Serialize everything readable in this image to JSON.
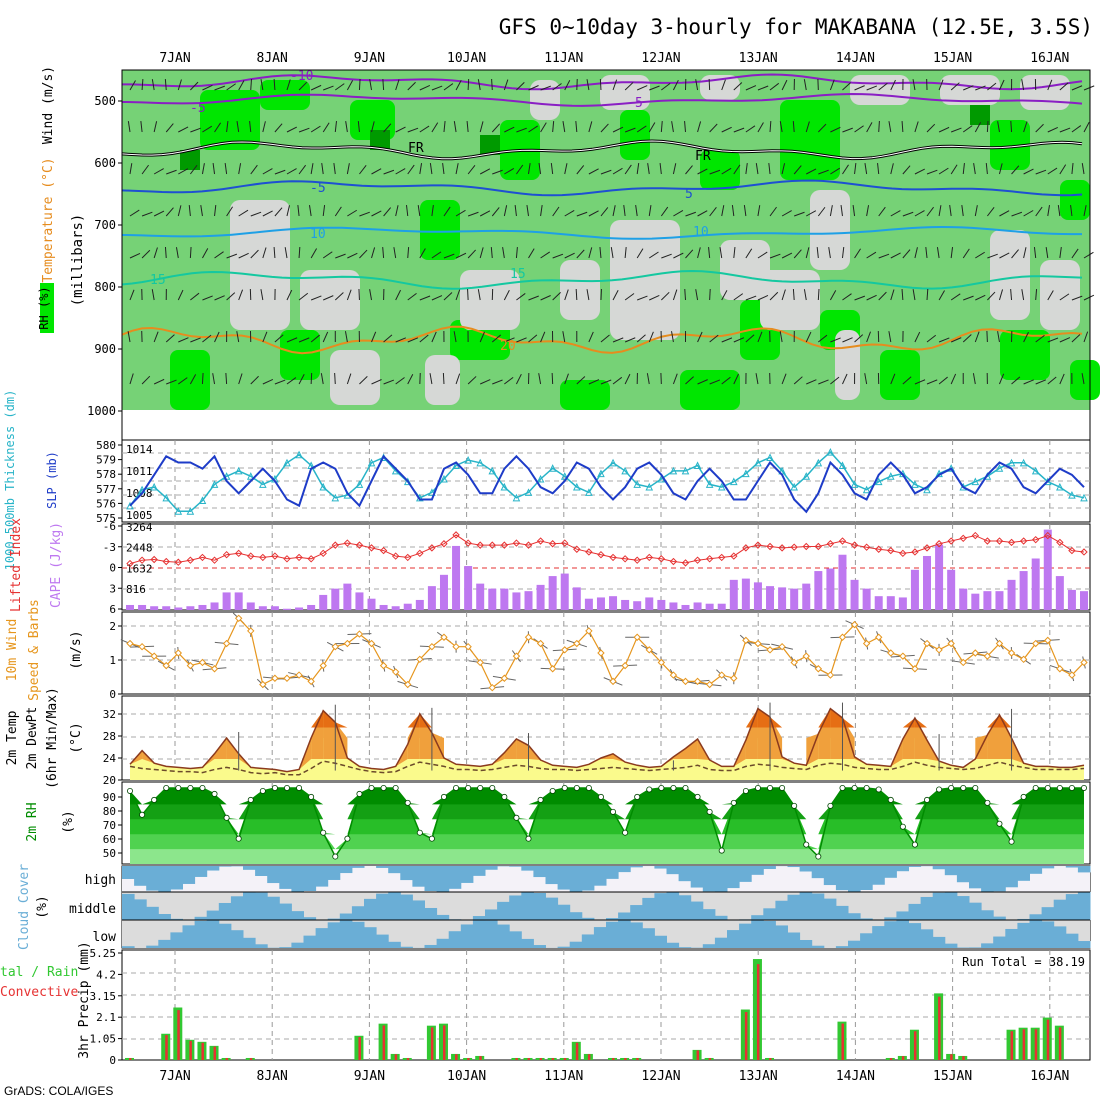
{
  "title": "GFS 0~10day 3-hourly for MAKABANA (12.5E, 3.5S)",
  "footer": "GrADS: COLA/IGES",
  "date_labels": [
    "7JAN",
    "8JAN",
    "9JAN",
    "10JAN",
    "11JAN",
    "12JAN",
    "13JAN",
    "14JAN",
    "15JAN",
    "16JAN"
  ],
  "colors": {
    "rh_light": "#76d276",
    "rh_bright": "#00e600",
    "rh_dark": "#009a00",
    "rh_dry": "#d6d8d6",
    "temp_purple": "#8a1ec4",
    "temp_blue": "#1e50d2",
    "temp_lightblue": "#1ea0e6",
    "temp_teal": "#14c8a0",
    "temp_orange": "#e68c1e",
    "slp": "#1e3cc8",
    "thickness": "#28b4c8",
    "lifted_index": "#e63232",
    "cape": "#be78f0",
    "wind10m": "#e6961e",
    "temp_dark_orange": "#e66e14",
    "temp_orange_mid": "#f0a03c",
    "temp_yellow": "#fafa8c",
    "rh2m_dark": "#008c00",
    "cloud": "#6aaed6",
    "cloud_bg": "#dcdcdc",
    "precip_green": "#32c832",
    "precip_red": "#e63232"
  },
  "panels": {
    "upper_air": {
      "ylabel": "(millibars)",
      "side_labels": [
        "RH (%)",
        "Temperature (°C)",
        "Wind (m/s)"
      ],
      "yticks": [
        "500",
        "600",
        "700",
        "800",
        "900",
        "1000"
      ],
      "contour_labels": [
        "-10",
        "-5",
        "FR",
        "-5",
        "10",
        "15",
        "20"
      ]
    },
    "pressure": {
      "left_ticks": [
        "580",
        "579",
        "578",
        "577",
        "576",
        "575"
      ],
      "right_ticks": [
        "1014",
        "1011",
        "1008",
        "1005"
      ],
      "label_thickness": "1000-500mb Thickness (dm)",
      "label_slp": "SLP (mb)"
    },
    "stability": {
      "left_ticks": [
        "-6",
        "-3",
        "0",
        "3",
        "6"
      ],
      "right_ticks": [
        "3264",
        "2448",
        "1632",
        "816"
      ],
      "label_li": "Lifted Index",
      "label_cape": "CAPE (J/kg)"
    },
    "wind10m": {
      "ticks": [
        "2",
        "1",
        "0"
      ],
      "label1": "10m Wind",
      "label2": "Speed & Barbs",
      "unit": "(m/s)"
    },
    "temp2m": {
      "ticks": [
        "32",
        "28",
        "24",
        "20"
      ],
      "label1": "2m Temp",
      "label2": "2m DewPt",
      "label3": "(6hr Min/Max)",
      "unit": "(°C)"
    },
    "rh2m": {
      "ticks": [
        "90",
        "80",
        "70",
        "60",
        "50"
      ],
      "label": "2m RH",
      "unit": "(%)"
    },
    "cloud": {
      "levels": [
        "high",
        "middle",
        "low"
      ],
      "label": "Cloud Cover",
      "unit": "(%)"
    },
    "precip": {
      "ticks": [
        "5.25",
        "4.2",
        "3.15",
        "2.1",
        "1.05",
        "0"
      ],
      "run_total": "Run Total = 38.19",
      "ylabel": "3hr Precip (mm)",
      "label1": "tal / Rain",
      "label2": "Convective"
    }
  },
  "chart_data": [
    {
      "type": "line",
      "title": "",
      "ylabel": "SLP (mb)",
      "ylim": [
        1004,
        1016
      ],
      "series": [
        {
          "name": "SLP",
          "values": [
            1006,
            1008,
            1011,
            1014,
            1013,
            1013,
            1012,
            1014,
            1010,
            1008,
            1010,
            1012,
            1010,
            1007,
            1006,
            1012,
            1013,
            1012,
            1008,
            1006,
            1010,
            1014,
            1012,
            1010,
            1007,
            1007,
            1012,
            1013,
            1011,
            1008,
            1008,
            1012,
            1014,
            1012,
            1009,
            1008,
            1010,
            1013,
            1012,
            1009,
            1007,
            1009,
            1012,
            1013,
            1011,
            1008,
            1007,
            1010,
            1012,
            1010,
            1007,
            1007,
            1010,
            1013,
            1011,
            1007,
            1005,
            1008,
            1013,
            1011,
            1008,
            1007,
            1011,
            1013,
            1011,
            1008,
            1009,
            1011,
            1012,
            1009,
            1008,
            1011,
            1013,
            1012,
            1009,
            1008,
            1010,
            1012,
            1011,
            1009
          ]
        }
      ]
    },
    {
      "type": "line",
      "title": "",
      "ylabel": "1000-500mb Thickness (dm)",
      "ylim": [
        574.5,
        580
      ],
      "series": [
        {
          "name": "Thickness",
          "values": [
            575.4,
            576.6,
            576.8,
            576.0,
            575.0,
            575.0,
            575.8,
            577.0,
            577.6,
            578.0,
            577.6,
            577.0,
            577.4,
            578.6,
            579.2,
            578.4,
            576.8,
            576.0,
            576.2,
            577.0,
            578.6,
            579.0,
            578.0,
            577.2,
            576.0,
            576.4,
            577.4,
            578.4,
            578.8,
            578.6,
            578.0,
            576.8,
            576.0,
            576.4,
            577.4,
            578.2,
            577.6,
            576.8,
            576.4,
            577.8,
            578.6,
            578.0,
            577.0,
            576.8,
            577.4,
            578.0,
            578.0,
            578.4,
            577.0,
            576.8,
            577.2,
            577.8,
            578.6,
            579.0,
            578.0,
            576.8,
            577.6,
            578.6,
            579.4,
            578.4,
            577.0,
            576.6,
            577.2,
            577.6,
            577.8,
            577.0,
            576.6,
            577.8,
            578.2,
            576.8,
            577.2,
            577.6,
            578.2,
            578.6,
            578.6,
            578.0,
            577.2,
            576.8,
            576.2,
            576.0
          ]
        }
      ]
    },
    {
      "type": "bar",
      "title": "",
      "ylabel": "CAPE (J/kg)",
      "ylim": [
        0,
        3264
      ],
      "values": [
        200,
        200,
        150,
        150,
        100,
        150,
        200,
        300,
        700,
        700,
        300,
        150,
        150,
        50,
        100,
        200,
        600,
        850,
        1050,
        700,
        450,
        200,
        150,
        250,
        400,
        950,
        1400,
        2550,
        1750,
        1050,
        850,
        850,
        700,
        750,
        1000,
        1350,
        1450,
        900,
        450,
        500,
        550,
        400,
        350,
        500,
        400,
        300,
        200,
        300,
        250,
        250,
        1200,
        1250,
        1100,
        950,
        900,
        850,
        1050,
        1550,
        1650,
        2200,
        1200,
        850,
        550,
        550,
        500,
        1600,
        2150,
        2600,
        1600,
        850,
        650,
        750,
        750,
        1200,
        1550,
        2050,
        3200,
        1350,
        800,
        750
      ]
    },
    {
      "type": "line",
      "title": "",
      "ylabel": "Lifted Index",
      "ylim": [
        -6,
        6
      ],
      "series": [
        {
          "name": "Lifted Index",
          "values": [
            -0.5,
            -1.0,
            -1.1,
            -0.8,
            -0.7,
            -1.0,
            -1.4,
            -1.0,
            -1.8,
            -2.0,
            -1.6,
            -1.4,
            -1.6,
            -1.2,
            -1.4,
            -1.2,
            -2.0,
            -3.2,
            -3.5,
            -3.2,
            -2.8,
            -2.4,
            -1.6,
            -1.4,
            -2.0,
            -2.8,
            -3.4,
            -4.7,
            -3.5,
            -3.2,
            -3.2,
            -3.2,
            -3.5,
            -3.2,
            -3.8,
            -3.4,
            -3.5,
            -2.6,
            -2.2,
            -1.8,
            -1.4,
            -1.2,
            -1.0,
            -1.4,
            -1.2,
            -0.8,
            -0.6,
            -1.0,
            -1.2,
            -1.4,
            -1.6,
            -2.8,
            -3.2,
            -3.0,
            -2.8,
            -2.9,
            -3.0,
            -3.0,
            -3.4,
            -3.8,
            -3.2,
            -2.9,
            -2.6,
            -2.4,
            -2.0,
            -2.2,
            -2.8,
            -3.4,
            -3.8,
            -4.2,
            -4.6,
            -3.8,
            -3.8,
            -3.6,
            -3.8,
            -4.0,
            -4.6,
            -3.6,
            -2.4,
            -2.2
          ]
        }
      ]
    },
    {
      "type": "line",
      "title": "",
      "ylabel": "Speed (m/s)",
      "ylim": [
        0,
        2.6
      ],
      "series": [
        {
          "name": "10m Wind Speed",
          "values": [
            1.6,
            1.5,
            1.2,
            0.9,
            1.3,
            0.9,
            1.0,
            0.8,
            1.6,
            2.4,
            2.0,
            0.3,
            0.5,
            0.5,
            0.6,
            0.4,
            0.9,
            1.5,
            1.6,
            1.9,
            1.6,
            0.9,
            0.7,
            0.3,
            1.1,
            1.5,
            1.8,
            1.5,
            1.5,
            1.0,
            0.2,
            0.5,
            1.2,
            1.8,
            1.6,
            0.8,
            1.4,
            1.6,
            2.0,
            1.3,
            0.4,
            0.9,
            1.8,
            1.4,
            1.0,
            0.6,
            0.4,
            0.4,
            0.3,
            0.6,
            0.5,
            1.7,
            1.6,
            1.4,
            1.5,
            1.0,
            1.2,
            0.8,
            0.6,
            1.8,
            2.2,
            1.6,
            1.8,
            1.3,
            1.2,
            0.8,
            1.6,
            1.4,
            1.6,
            1.0,
            1.3,
            1.2,
            1.6,
            1.3,
            1.1,
            1.6,
            1.7,
            0.8,
            0.6,
            1.0
          ]
        }
      ]
    },
    {
      "type": "area",
      "title": "",
      "ylabel": "2m Temp (°C)",
      "ylim": [
        20,
        35
      ],
      "series": [
        {
          "name": "2m Temp",
          "values": [
            23.0,
            25.6,
            23.2,
            22.6,
            22.4,
            22.2,
            22.4,
            25.0,
            28.0,
            25.0,
            22.4,
            22.2,
            22.0,
            21.6,
            22.0,
            28.0,
            33.2,
            31.0,
            24.2,
            22.6,
            22.2,
            22.0,
            22.6,
            26.8,
            32.6,
            29.0,
            24.2,
            23.0,
            22.8,
            22.6,
            23.0,
            25.2,
            27.8,
            26.6,
            23.8,
            22.8,
            22.6,
            22.4,
            23.0,
            24.2,
            25.0,
            23.4,
            22.8,
            22.4,
            22.6,
            24.4,
            26.0,
            27.8,
            23.8,
            22.6,
            22.6,
            27.6,
            33.6,
            32.0,
            24.4,
            23.2,
            22.8,
            28.8,
            33.6,
            31.8,
            24.4,
            23.0,
            22.8,
            22.6,
            27.8,
            31.8,
            27.6,
            23.6,
            22.8,
            22.4,
            24.0,
            28.6,
            32.4,
            28.0,
            23.2,
            22.6,
            22.6,
            22.4,
            22.4,
            22.8
          ]
        },
        {
          "name": "2m DewPt",
          "values": [
            22.6,
            22.2,
            22.0,
            21.8,
            21.6,
            21.6,
            21.4,
            22.0,
            22.4,
            22.0,
            21.4,
            21.2,
            21.4,
            21.0,
            21.0,
            22.2,
            23.6,
            23.2,
            22.6,
            22.0,
            21.6,
            21.4,
            21.6,
            22.6,
            23.4,
            23.0,
            22.6,
            22.0,
            22.0,
            21.8,
            22.0,
            22.4,
            22.8,
            22.6,
            22.2,
            22.0,
            22.0,
            21.8,
            22.0,
            22.2,
            22.4,
            22.2,
            22.0,
            21.8,
            22.0,
            22.2,
            22.4,
            22.8,
            22.0,
            21.8,
            21.8,
            22.6,
            23.0,
            22.8,
            22.4,
            22.2,
            22.0,
            22.8,
            23.2,
            23.0,
            22.4,
            22.2,
            22.0,
            22.0,
            22.6,
            23.4,
            22.8,
            22.4,
            22.2,
            22.0,
            22.2,
            22.8,
            23.4,
            22.8,
            22.4,
            22.0,
            22.0,
            22.0,
            22.0,
            22.2
          ]
        }
      ]
    },
    {
      "type": "area",
      "title": "",
      "ylabel": "2m RH (%)",
      "ylim": [
        45,
        100
      ],
      "series": [
        {
          "name": "2m RH",
          "values": [
            94,
            78,
            88,
            96,
            96,
            96,
            96,
            92,
            76,
            62,
            88,
            94,
            96,
            96,
            96,
            90,
            66,
            50,
            62,
            92,
            96,
            96,
            96,
            86,
            66,
            62,
            90,
            96,
            96,
            96,
            96,
            90,
            76,
            62,
            88,
            94,
            96,
            96,
            96,
            90,
            80,
            66,
            90,
            95,
            96,
            96,
            96,
            90,
            80,
            54,
            86,
            94,
            96,
            96,
            96,
            84,
            58,
            50,
            84,
            96,
            96,
            96,
            95,
            88,
            70,
            58,
            88,
            95,
            96,
            96,
            96,
            86,
            72,
            60,
            90,
            96,
            96,
            96,
            96,
            96
          ]
        }
      ]
    },
    {
      "type": "bar",
      "title": "",
      "ylabel": "3hr Precip (mm)",
      "ylim": [
        0,
        5.25
      ],
      "values": [
        0.1,
        0,
        0,
        1.3,
        2.6,
        1.0,
        0.9,
        0.7,
        0.1,
        0,
        0.1,
        0,
        0,
        0,
        0,
        0,
        0,
        0,
        0,
        1.2,
        0,
        1.8,
        0.3,
        0.1,
        0,
        1.7,
        1.8,
        0.3,
        0.1,
        0.2,
        0,
        0,
        0.1,
        0.1,
        0.1,
        0.1,
        0.1,
        0.9,
        0.3,
        0,
        0.1,
        0.1,
        0.1,
        0,
        0,
        0,
        0,
        0.5,
        0.1,
        0,
        0,
        2.5,
        5.0,
        0.1,
        0,
        0,
        0,
        0,
        0,
        1.9,
        0,
        0,
        0,
        0.1,
        0.2,
        1.5,
        0,
        3.3,
        0.3,
        0.2,
        0,
        0,
        0,
        1.5,
        1.6,
        1.6,
        2.1,
        1.7,
        0,
        0
      ]
    }
  ]
}
